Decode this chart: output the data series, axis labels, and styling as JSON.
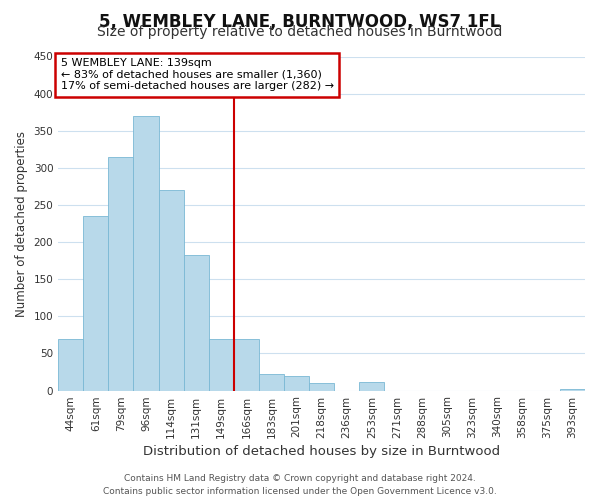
{
  "title": "5, WEMBLEY LANE, BURNTWOOD, WS7 1FL",
  "subtitle": "Size of property relative to detached houses in Burntwood",
  "xlabel": "Distribution of detached houses by size in Burntwood",
  "ylabel": "Number of detached properties",
  "bar_labels": [
    "44sqm",
    "61sqm",
    "79sqm",
    "96sqm",
    "114sqm",
    "131sqm",
    "149sqm",
    "166sqm",
    "183sqm",
    "201sqm",
    "218sqm",
    "236sqm",
    "253sqm",
    "271sqm",
    "288sqm",
    "305sqm",
    "323sqm",
    "340sqm",
    "358sqm",
    "375sqm",
    "393sqm"
  ],
  "bar_heights": [
    70,
    235,
    315,
    370,
    270,
    183,
    70,
    70,
    22,
    20,
    10,
    0,
    12,
    0,
    0,
    0,
    0,
    0,
    0,
    0,
    2
  ],
  "bar_color": "#b8d9ea",
  "bar_edge_color": "#7ab8d4",
  "vline_index": 6.5,
  "vline_color": "#cc0000",
  "annotation_title": "5 WEMBLEY LANE: 139sqm",
  "annotation_line1": "← 83% of detached houses are smaller (1,360)",
  "annotation_line2": "17% of semi-detached houses are larger (282) →",
  "annotation_box_edge_color": "#cc0000",
  "annotation_box_fill": "#ffffff",
  "ylim": [
    0,
    450
  ],
  "yticks": [
    0,
    50,
    100,
    150,
    200,
    250,
    300,
    350,
    400,
    450
  ],
  "footer1": "Contains HM Land Registry data © Crown copyright and database right 2024.",
  "footer2": "Contains public sector information licensed under the Open Government Licence v3.0.",
  "background_color": "#ffffff",
  "grid_color": "#cde0ef",
  "title_fontsize": 12,
  "subtitle_fontsize": 10,
  "xlabel_fontsize": 9.5,
  "ylabel_fontsize": 8.5,
  "tick_fontsize": 7.5,
  "annotation_fontsize": 8,
  "footer_fontsize": 6.5
}
